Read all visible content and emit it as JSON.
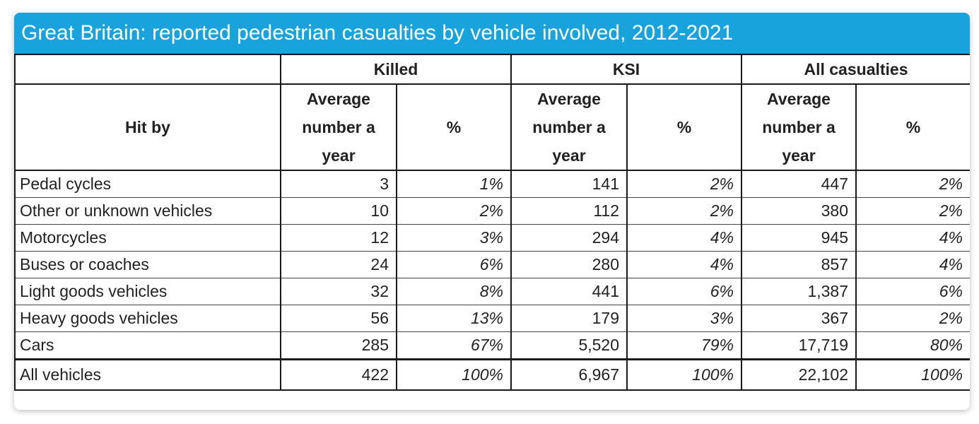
{
  "chart_data": {
    "type": "table",
    "title": "Great Britain: reported pedestrian casualties by vehicle involved, 2012-2021",
    "row_header": "Hit by",
    "groups": [
      "Killed",
      "KSI",
      "All casualties"
    ],
    "sub_headers": {
      "average": "Average number a year",
      "pct": "%"
    },
    "rows": [
      {
        "name": "Pedal cycles",
        "killed_avg": "3",
        "killed_pct": "1%",
        "ksi_avg": "141",
        "ksi_pct": "2%",
        "all_avg": "447",
        "all_pct": "2%"
      },
      {
        "name": "Other or unknown vehicles",
        "killed_avg": "10",
        "killed_pct": "2%",
        "ksi_avg": "112",
        "ksi_pct": "2%",
        "all_avg": "380",
        "all_pct": "2%"
      },
      {
        "name": "Motorcycles",
        "killed_avg": "12",
        "killed_pct": "3%",
        "ksi_avg": "294",
        "ksi_pct": "4%",
        "all_avg": "945",
        "all_pct": "4%"
      },
      {
        "name": "Buses or coaches",
        "killed_avg": "24",
        "killed_pct": "6%",
        "ksi_avg": "280",
        "ksi_pct": "4%",
        "all_avg": "857",
        "all_pct": "4%"
      },
      {
        "name": "Light goods vehicles",
        "killed_avg": "32",
        "killed_pct": "8%",
        "ksi_avg": "441",
        "ksi_pct": "6%",
        "all_avg": "1,387",
        "all_pct": "6%"
      },
      {
        "name": "Heavy goods vehicles",
        "killed_avg": "56",
        "killed_pct": "13%",
        "ksi_avg": "179",
        "ksi_pct": "3%",
        "all_avg": "367",
        "all_pct": "2%"
      },
      {
        "name": "Cars",
        "killed_avg": "285",
        "killed_pct": "67%",
        "ksi_avg": "5,520",
        "ksi_pct": "79%",
        "all_avg": "17,719",
        "all_pct": "80%"
      }
    ],
    "total": {
      "name": "All vehicles",
      "killed_avg": "422",
      "killed_pct": "100%",
      "ksi_avg": "6,967",
      "ksi_pct": "100%",
      "all_avg": "22,102",
      "all_pct": "100%"
    },
    "colors": {
      "title_bar": "#18a3dc",
      "title_text": "#ffffff",
      "border": "#1a1a1a"
    }
  }
}
